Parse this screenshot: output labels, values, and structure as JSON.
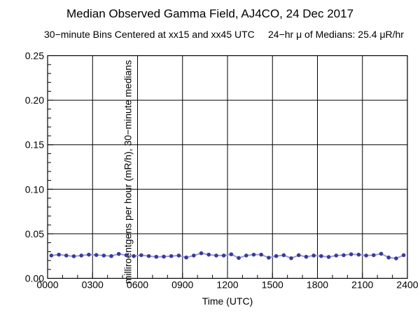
{
  "page": {
    "background": "#ffffff"
  },
  "chart_data": {
    "type": "line",
    "title": "Median Observed Gamma Field, AJ4CO, 24 Dec 2017",
    "subtitle_left": "30−minute Bins Centered at xx15 and xx45 UTC",
    "subtitle_right": "24−hr μ of Medians: 25.4 μR/hr",
    "xlabel": "Time (UTC)",
    "ylabel": "milliroentgens per hour (mR/h), 30−minute medians",
    "xlim_hours": [
      0,
      24
    ],
    "ylim": [
      0,
      0.25
    ],
    "grid": true,
    "legend": "none",
    "x_major_tick_hours": [
      0,
      3,
      6,
      9,
      12,
      15,
      18,
      21,
      24
    ],
    "x_major_tick_labels": [
      "0000",
      "0300",
      "0600",
      "0900",
      "1200",
      "1500",
      "1800",
      "2100",
      "2400"
    ],
    "x_minor_step_hours": 1,
    "y_major_ticks": [
      0.0,
      0.05,
      0.1,
      0.15,
      0.2,
      0.25
    ],
    "y_major_tick_labels": [
      "0.00",
      "0.05",
      "0.10",
      "0.15",
      "0.20",
      "0.25"
    ],
    "y_minor_step": 0.01,
    "series": [
      {
        "name": "30-minute median gamma field",
        "marker": "filled-circle",
        "line_color": "#9a9ad2",
        "marker_color": "#3a3a9b",
        "x_hours": [
          0.25,
          0.75,
          1.25,
          1.75,
          2.25,
          2.75,
          3.25,
          3.75,
          4.25,
          4.75,
          5.25,
          5.75,
          6.25,
          6.75,
          7.25,
          7.75,
          8.25,
          8.75,
          9.25,
          9.75,
          10.25,
          10.75,
          11.25,
          11.75,
          12.25,
          12.75,
          13.25,
          13.75,
          14.25,
          14.75,
          15.25,
          15.75,
          16.25,
          16.75,
          17.25,
          17.75,
          18.25,
          18.75,
          19.25,
          19.75,
          20.25,
          20.75,
          21.25,
          21.75,
          22.25,
          22.75,
          23.25,
          23.75
        ],
        "y_mR_per_h": [
          0.0256,
          0.0266,
          0.0256,
          0.0248,
          0.0256,
          0.0266,
          0.0262,
          0.0256,
          0.025,
          0.0274,
          0.026,
          0.025,
          0.026,
          0.025,
          0.0242,
          0.0244,
          0.025,
          0.0256,
          0.0234,
          0.0256,
          0.0282,
          0.0266,
          0.0256,
          0.0256,
          0.027,
          0.0229,
          0.0256,
          0.0266,
          0.0266,
          0.0232,
          0.025,
          0.026,
          0.0226,
          0.026,
          0.0242,
          0.0256,
          0.025,
          0.024,
          0.0256,
          0.026,
          0.027,
          0.0266,
          0.0256,
          0.026,
          0.0276,
          0.0234,
          0.0224,
          0.026
        ]
      }
    ],
    "axis_color": "#000000",
    "grid_color": "#000000"
  }
}
